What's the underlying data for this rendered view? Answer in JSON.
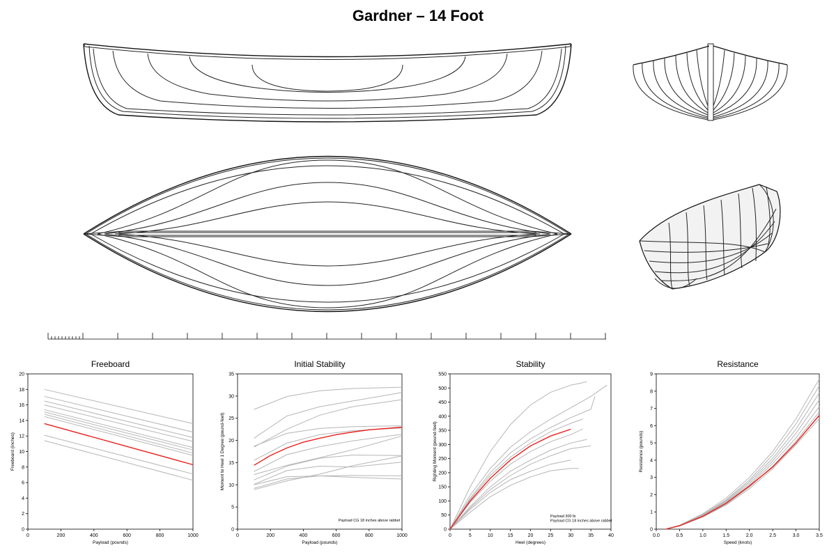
{
  "page": {
    "title": "Gardner – 14 Foot"
  },
  "colors": {
    "highlight": "#e8201c",
    "comparison": "#b5b5b5",
    "drawing": "#222222"
  },
  "drawings": {
    "profile_view": "hull profile lines",
    "body_plan": "hull body plan sections",
    "plan_view": "hull half-breadth waterlines",
    "perspective": "hull 3D wireframe",
    "scale_bar": "scale ruler"
  },
  "chart_data": [
    {
      "type": "line",
      "title": "Freeboard",
      "xlabel": "Payload (pounds)",
      "ylabel": "Freeboard (inches)",
      "xlim": [
        0,
        1000
      ],
      "ylim": [
        0,
        20
      ],
      "xticks": [
        "0",
        "200",
        "400",
        "600",
        "800",
        "1000"
      ],
      "yticks": [
        "0",
        "2",
        "4",
        "6",
        "8",
        "10",
        "12",
        "14",
        "16",
        "18",
        "20"
      ],
      "highlight": {
        "x": [
          100,
          1000
        ],
        "y": [
          13.6,
          8.3
        ]
      },
      "comparison": [
        {
          "x": [
            100,
            1000
          ],
          "y": [
            18.0,
            13.6
          ]
        },
        {
          "x": [
            100,
            1000
          ],
          "y": [
            17.1,
            12.5
          ]
        },
        {
          "x": [
            100,
            1000
          ],
          "y": [
            16.5,
            11.8
          ]
        },
        {
          "x": [
            100,
            1000
          ],
          "y": [
            16.0,
            11.3
          ]
        },
        {
          "x": [
            100,
            1000
          ],
          "y": [
            15.4,
            10.5
          ]
        },
        {
          "x": [
            100,
            1000
          ],
          "y": [
            15.1,
            10.2
          ]
        },
        {
          "x": [
            100,
            1000
          ],
          "y": [
            14.8,
            9.8
          ]
        },
        {
          "x": [
            100,
            1000
          ],
          "y": [
            14.5,
            9.5
          ]
        },
        {
          "x": [
            100,
            1000
          ],
          "y": [
            12.1,
            7.1
          ]
        },
        {
          "x": [
            100,
            1000
          ],
          "y": [
            11.4,
            6.3
          ]
        }
      ],
      "note": []
    },
    {
      "type": "line",
      "title": "Initial Stability",
      "xlabel": "Payload (pounds)",
      "ylabel": "Moment to Heel 1 Degree  (pound-feet)",
      "xlim": [
        0,
        1000
      ],
      "ylim": [
        0,
        35
      ],
      "xticks": [
        "0",
        "200",
        "400",
        "600",
        "800",
        "1000"
      ],
      "yticks": [
        "0",
        "5",
        "10",
        "15",
        "20",
        "25",
        "30",
        "35"
      ],
      "highlight": {
        "x": [
          100,
          200,
          300,
          400,
          500,
          600,
          700,
          800,
          900,
          1000
        ],
        "y": [
          14.4,
          16.6,
          18.3,
          19.6,
          20.5,
          21.3,
          21.9,
          22.4,
          22.7,
          23.0
        ]
      },
      "comparison": [
        {
          "x": [
            100,
            300,
            500,
            700,
            1000
          ],
          "y": [
            27.0,
            29.9,
            31.2,
            31.7,
            32.0
          ]
        },
        {
          "x": [
            100,
            300,
            500,
            700,
            1000
          ],
          "y": [
            20.5,
            25.5,
            27.6,
            28.9,
            30.8
          ]
        },
        {
          "x": [
            100,
            300,
            500,
            700,
            1000
          ],
          "y": [
            18.5,
            22.5,
            25.7,
            27.6,
            29.2
          ]
        },
        {
          "x": [
            100,
            300,
            500,
            700,
            1000
          ],
          "y": [
            18.7,
            21.6,
            22.7,
            23.1,
            23.3
          ]
        },
        {
          "x": [
            100,
            300,
            500,
            700,
            1000
          ],
          "y": [
            15.5,
            19.4,
            21.3,
            22.2,
            22.8
          ]
        },
        {
          "x": [
            100,
            300,
            500,
            700,
            1000
          ],
          "y": [
            13.0,
            16.8,
            18.6,
            19.9,
            21.4
          ]
        },
        {
          "x": [
            100,
            300,
            500,
            700,
            1000
          ],
          "y": [
            12.3,
            14.4,
            16.1,
            17.9,
            21.0
          ]
        },
        {
          "x": [
            100,
            300,
            500,
            700,
            1000
          ],
          "y": [
            11.1,
            14.2,
            16.0,
            16.7,
            16.6
          ]
        },
        {
          "x": [
            100,
            300,
            500,
            700,
            1000
          ],
          "y": [
            10.1,
            13.2,
            14.2,
            14.0,
            15.1
          ]
        },
        {
          "x": [
            100,
            300,
            500,
            700,
            1000
          ],
          "y": [
            10.0,
            11.8,
            12.0,
            11.7,
            11.3
          ]
        },
        {
          "x": [
            100,
            300,
            500,
            700,
            1000
          ],
          "y": [
            9.2,
            11.3,
            12.0,
            12.1,
            12.0
          ]
        },
        {
          "x": [
            100,
            300,
            500,
            700,
            1000
          ],
          "y": [
            8.9,
            10.9,
            12.4,
            14.3,
            16.5
          ]
        }
      ],
      "note": [
        "Payload CG 18 inches above rabbet"
      ]
    },
    {
      "type": "line",
      "title": "Stability",
      "xlabel": "Heel  (degrees)",
      "ylabel": "Righting Moment  (pound-feet)",
      "xlim": [
        0,
        40
      ],
      "ylim": [
        0,
        550
      ],
      "xticks": [
        "0",
        "5",
        "10",
        "15",
        "20",
        "25",
        "30",
        "35",
        "40"
      ],
      "yticks": [
        "0",
        "50",
        "100",
        "150",
        "200",
        "250",
        "300",
        "350",
        "400",
        "450",
        "500",
        "550"
      ],
      "highlight": {
        "x": [
          0,
          5,
          10,
          15,
          20,
          25,
          30
        ],
        "y": [
          0,
          100,
          180,
          245,
          295,
          330,
          354
        ]
      },
      "comparison": [
        {
          "x": [
            0,
            5,
            10,
            15,
            20,
            25,
            30,
            34
          ],
          "y": [
            0,
            150,
            275,
            370,
            440,
            485,
            510,
            522
          ]
        },
        {
          "x": [
            0,
            5,
            10,
            15,
            20,
            25,
            30,
            35,
            39
          ],
          "y": [
            0,
            120,
            215,
            290,
            345,
            390,
            430,
            470,
            510
          ]
        },
        {
          "x": [
            0,
            5,
            10,
            15,
            20,
            25,
            30,
            35,
            36
          ],
          "y": [
            0,
            110,
            200,
            270,
            320,
            360,
            395,
            425,
            470
          ]
        },
        {
          "x": [
            0,
            5,
            10,
            15,
            20,
            25,
            30,
            33
          ],
          "y": [
            0,
            105,
            190,
            255,
            305,
            345,
            375,
            390
          ]
        },
        {
          "x": [
            0,
            5,
            10,
            15,
            20,
            25,
            30,
            33
          ],
          "y": [
            0,
            95,
            170,
            230,
            275,
            310,
            335,
            355
          ]
        },
        {
          "x": [
            0,
            5,
            10,
            15,
            20,
            25,
            30,
            34
          ],
          "y": [
            0,
            80,
            150,
            205,
            245,
            280,
            305,
            318
          ]
        },
        {
          "x": [
            0,
            5,
            10,
            15,
            20,
            25,
            30,
            35
          ],
          "y": [
            0,
            75,
            140,
            190,
            230,
            260,
            285,
            295
          ]
        },
        {
          "x": [
            0,
            5,
            10,
            15,
            20,
            25,
            30,
            32
          ],
          "y": [
            0,
            60,
            115,
            155,
            185,
            207,
            215,
            215
          ]
        },
        {
          "x": [
            0,
            5,
            10,
            15,
            20,
            25,
            30
          ],
          "y": [
            0,
            70,
            130,
            175,
            205,
            230,
            245
          ]
        }
      ],
      "note": [
        "Payload 300 lb",
        "Payload CG 18 inches above rabbet"
      ]
    },
    {
      "type": "line",
      "title": "Resistance",
      "xlabel": "Speed  (knots)",
      "ylabel": "Resistance (pounds)",
      "xlim": [
        0,
        3.5
      ],
      "ylim": [
        0,
        9
      ],
      "xticks": [
        "0.0",
        "0.5",
        "1.0",
        "1.5",
        "2.0",
        "2.5",
        "3.0",
        "3.5"
      ],
      "yticks": [
        "0",
        "1",
        "2",
        "3",
        "4",
        "5",
        "6",
        "7",
        "8",
        "9"
      ],
      "highlight": {
        "x": [
          0.2,
          0.5,
          1.0,
          1.5,
          2.0,
          2.5,
          3.0,
          3.5
        ],
        "y": [
          0.0,
          0.2,
          0.75,
          1.5,
          2.5,
          3.6,
          5.0,
          6.6
        ]
      },
      "comparison": [
        {
          "x": [
            0.2,
            0.5,
            1.0,
            1.5,
            2.0,
            2.5,
            3.0,
            3.5
          ],
          "y": [
            0.0,
            0.22,
            0.9,
            1.8,
            3.0,
            4.5,
            6.4,
            8.7
          ]
        },
        {
          "x": [
            0.2,
            0.5,
            1.0,
            1.5,
            2.0,
            2.5,
            3.0,
            3.5
          ],
          "y": [
            0.0,
            0.21,
            0.85,
            1.7,
            2.85,
            4.3,
            6.1,
            8.3
          ]
        },
        {
          "x": [
            0.2,
            0.5,
            1.0,
            1.5,
            2.0,
            2.5,
            3.0,
            3.5
          ],
          "y": [
            0.0,
            0.2,
            0.82,
            1.65,
            2.75,
            4.1,
            5.8,
            7.9
          ]
        },
        {
          "x": [
            0.2,
            0.5,
            1.0,
            1.5,
            2.0,
            2.5,
            3.0,
            3.5
          ],
          "y": [
            0.0,
            0.2,
            0.8,
            1.6,
            2.65,
            3.95,
            5.55,
            7.5
          ]
        },
        {
          "x": [
            0.2,
            0.5,
            1.0,
            1.5,
            2.0,
            2.5,
            3.0,
            3.5
          ],
          "y": [
            0.0,
            0.19,
            0.78,
            1.55,
            2.55,
            3.8,
            5.3,
            7.1
          ]
        },
        {
          "x": [
            0.2,
            0.5,
            1.0,
            1.5,
            2.0,
            2.5,
            3.0,
            3.5
          ],
          "y": [
            0.0,
            0.18,
            0.72,
            1.45,
            2.45,
            3.65,
            5.1,
            6.8
          ]
        },
        {
          "x": [
            0.2,
            0.5,
            1.0,
            1.5,
            2.0,
            2.5,
            3.0,
            3.5
          ],
          "y": [
            0.0,
            0.17,
            0.7,
            1.4,
            2.35,
            3.5,
            4.9,
            6.4
          ]
        }
      ],
      "note": []
    }
  ]
}
